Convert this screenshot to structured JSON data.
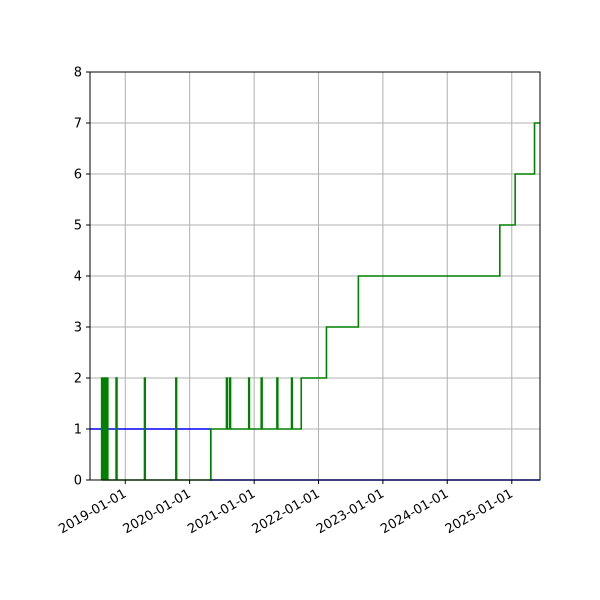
{
  "chart_data": {
    "type": "line",
    "title": "",
    "xlabel": "",
    "ylabel": "",
    "grid": true,
    "xlim": [
      "2018-06-15",
      "2025-06-10"
    ],
    "ylim": [
      0,
      8
    ],
    "x_ticks": [
      "2019-01-01",
      "2020-01-01",
      "2021-01-01",
      "2022-01-01",
      "2023-01-01",
      "2024-01-01",
      "2025-01-01"
    ],
    "y_ticks": [
      0,
      1,
      2,
      3,
      4,
      5,
      6,
      7,
      8
    ],
    "colors": {
      "series_1": "#0000ff",
      "series_2": "#008000",
      "grid": "#b0b0b0"
    },
    "series": [
      {
        "color": "#0000ff",
        "step": true,
        "points": [
          [
            "2018-06-15",
            1
          ],
          [
            "2020-04-30",
            1
          ],
          [
            "2020-04-30",
            0
          ],
          [
            "2025-06-10",
            0
          ]
        ]
      },
      {
        "color": "#008000",
        "step": true,
        "points": [
          [
            "2018-08-20",
            0
          ],
          [
            "2018-08-20",
            2
          ],
          [
            "2018-08-25",
            2
          ],
          [
            "2018-08-25",
            0
          ],
          [
            "2018-08-30",
            0
          ],
          [
            "2018-08-30",
            2
          ],
          [
            "2018-09-04",
            2
          ],
          [
            "2018-09-04",
            0
          ],
          [
            "2018-09-08",
            0
          ],
          [
            "2018-09-08",
            2
          ],
          [
            "2018-09-13",
            2
          ],
          [
            "2018-09-13",
            0
          ],
          [
            "2018-09-18",
            0
          ],
          [
            "2018-09-18",
            2
          ],
          [
            "2018-09-24",
            2
          ],
          [
            "2018-09-24",
            0
          ],
          [
            "2018-11-10",
            0
          ],
          [
            "2018-11-10",
            2
          ],
          [
            "2018-11-15",
            2
          ],
          [
            "2018-11-15",
            0
          ],
          [
            "2019-04-20",
            0
          ],
          [
            "2019-04-20",
            2
          ],
          [
            "2019-04-24",
            2
          ],
          [
            "2019-04-24",
            0
          ],
          [
            "2019-10-15",
            0
          ],
          [
            "2019-10-15",
            2
          ],
          [
            "2019-10-19",
            2
          ],
          [
            "2019-10-19",
            0
          ],
          [
            "2020-04-30",
            0
          ],
          [
            "2020-04-30",
            1
          ],
          [
            "2020-07-28",
            1
          ],
          [
            "2020-07-28",
            2
          ],
          [
            "2020-08-02",
            2
          ],
          [
            "2020-08-02",
            1
          ],
          [
            "2020-08-15",
            1
          ],
          [
            "2020-08-15",
            2
          ],
          [
            "2020-08-20",
            2
          ],
          [
            "2020-08-20",
            1
          ],
          [
            "2020-12-01",
            1
          ],
          [
            "2020-12-01",
            2
          ],
          [
            "2020-12-05",
            2
          ],
          [
            "2020-12-05",
            1
          ],
          [
            "2021-02-10",
            1
          ],
          [
            "2021-02-10",
            2
          ],
          [
            "2021-02-15",
            2
          ],
          [
            "2021-02-15",
            1
          ],
          [
            "2021-05-10",
            1
          ],
          [
            "2021-05-10",
            2
          ],
          [
            "2021-05-15",
            2
          ],
          [
            "2021-05-15",
            1
          ],
          [
            "2021-08-01",
            1
          ],
          [
            "2021-08-01",
            2
          ],
          [
            "2021-08-05",
            2
          ],
          [
            "2021-08-05",
            1
          ],
          [
            "2021-09-25",
            1
          ],
          [
            "2021-09-25",
            2
          ],
          [
            "2022-02-15",
            2
          ],
          [
            "2022-02-15",
            3
          ],
          [
            "2022-08-15",
            3
          ],
          [
            "2022-08-15",
            4
          ],
          [
            "2024-10-25",
            4
          ],
          [
            "2024-10-25",
            5
          ],
          [
            "2025-01-20",
            5
          ],
          [
            "2025-01-20",
            6
          ],
          [
            "2025-05-10",
            6
          ],
          [
            "2025-05-10",
            7
          ],
          [
            "2025-06-10",
            7
          ]
        ]
      }
    ]
  }
}
